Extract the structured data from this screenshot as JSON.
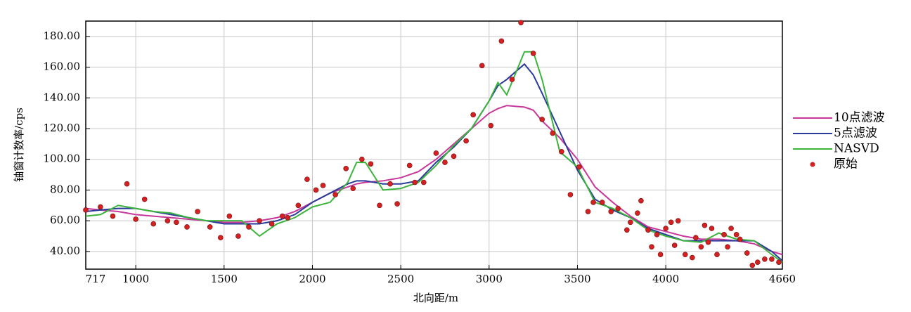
{
  "chart_data": {
    "type": "line",
    "x_label": "北向距/m",
    "y_label": "铀窗计数率/cps",
    "xlim": [
      717,
      4660
    ],
    "ylim": [
      28.5,
      190
    ],
    "xticks": [
      717,
      1000,
      1500,
      2000,
      2500,
      3000,
      3500,
      4000,
      4660
    ],
    "yticks": [
      {
        "value": 40,
        "label": "40.00"
      },
      {
        "value": 60,
        "label": "60.00"
      },
      {
        "value": 80,
        "label": "80.00"
      },
      {
        "value": 100,
        "label": "100.00"
      },
      {
        "value": 120,
        "label": "120.00"
      },
      {
        "value": 140,
        "label": "140.00"
      },
      {
        "value": 160,
        "label": "160.00"
      },
      {
        "value": 180,
        "label": "180.00"
      }
    ],
    "grid": true,
    "legend": "right",
    "x": [
      717,
      800,
      900,
      1000,
      1100,
      1200,
      1300,
      1400,
      1500,
      1600,
      1700,
      1800,
      1900,
      2000,
      2100,
      2200,
      2250,
      2300,
      2400,
      2500,
      2600,
      2700,
      2800,
      2900,
      3000,
      3050,
      3100,
      3200,
      3250,
      3300,
      3400,
      3500,
      3600,
      3700,
      3800,
      3900,
      4000,
      4100,
      4200,
      4300,
      4400,
      4500,
      4600,
      4660
    ],
    "series": [
      {
        "name": "10点滤波",
        "color": "#c8389c",
        "mode": "line",
        "values": [
          68,
          67,
          66,
          64,
          63,
          62,
          61,
          60,
          59,
          59,
          60,
          62,
          66,
          72,
          78,
          82,
          84,
          85,
          86,
          88,
          92,
          100,
          110,
          120,
          130,
          133,
          135,
          134,
          132,
          125,
          114,
          100,
          82,
          72,
          63,
          56,
          53,
          50,
          48,
          48,
          47,
          45,
          40,
          38
        ]
      },
      {
        "name": "5点滤波",
        "color": "#2a3a9a",
        "mode": "line",
        "values": [
          66,
          67,
          68,
          68,
          66,
          64,
          62,
          60,
          58,
          58,
          58,
          60,
          64,
          72,
          78,
          84,
          86,
          86,
          84,
          84,
          86,
          98,
          108,
          120,
          138,
          148,
          152,
          162,
          155,
          143,
          118,
          93,
          74,
          67,
          62,
          55,
          51,
          47,
          47,
          47,
          47,
          47,
          40,
          34
        ]
      },
      {
        "name": "NASVD",
        "color": "#3cb43c",
        "mode": "line",
        "values": [
          63,
          64,
          70,
          68,
          66,
          65,
          62,
          60,
          60,
          60,
          50,
          58,
          62,
          69,
          72,
          85,
          98,
          98,
          80,
          81,
          85,
          96,
          109,
          120,
          138,
          150,
          142,
          170,
          170,
          152,
          105,
          95,
          72,
          68,
          62,
          54,
          50,
          47,
          46,
          52,
          48,
          47,
          38,
          33
        ]
      },
      {
        "name": "原始",
        "color": "#d42020",
        "mode": "markers",
        "x": [
          717,
          800,
          870,
          950,
          1000,
          1050,
          1100,
          1180,
          1230,
          1290,
          1350,
          1420,
          1480,
          1530,
          1580,
          1640,
          1700,
          1770,
          1830,
          1860,
          1920,
          1970,
          2020,
          2060,
          2130,
          2190,
          2230,
          2280,
          2330,
          2380,
          2440,
          2480,
          2550,
          2580,
          2630,
          2700,
          2750,
          2800,
          2870,
          2910,
          2960,
          3010,
          3070,
          3130,
          3180,
          3250,
          3300,
          3360,
          3410,
          3460,
          3510,
          3560,
          3590,
          3640,
          3690,
          3730,
          3780,
          3800,
          3840,
          3860,
          3900,
          3920,
          3950,
          3970,
          4000,
          4030,
          4050,
          4070,
          4110,
          4150,
          4170,
          4200,
          4220,
          4240,
          4260,
          4290,
          4330,
          4350,
          4370,
          4400,
          4420,
          4460,
          4490,
          4520,
          4560,
          4600,
          4640
        ],
        "values": [
          67,
          69,
          63,
          84,
          61,
          74,
          58,
          60,
          59,
          56,
          66,
          56,
          49,
          63,
          50,
          56,
          60,
          58,
          63,
          62,
          70,
          87,
          80,
          83,
          77,
          94,
          81,
          100,
          97,
          70,
          84,
          71,
          96,
          85,
          85,
          104,
          98,
          102,
          112,
          129,
          161,
          122,
          177,
          152,
          189,
          169,
          126,
          117,
          105,
          77,
          95,
          66,
          72,
          72,
          66,
          68,
          54,
          59,
          65,
          73,
          54,
          43,
          51,
          38,
          55,
          59,
          44,
          60,
          38,
          36,
          49,
          43,
          57,
          46,
          55,
          38,
          51,
          43,
          55,
          51,
          48,
          39,
          31,
          33,
          35,
          35,
          33
        ]
      }
    ]
  }
}
